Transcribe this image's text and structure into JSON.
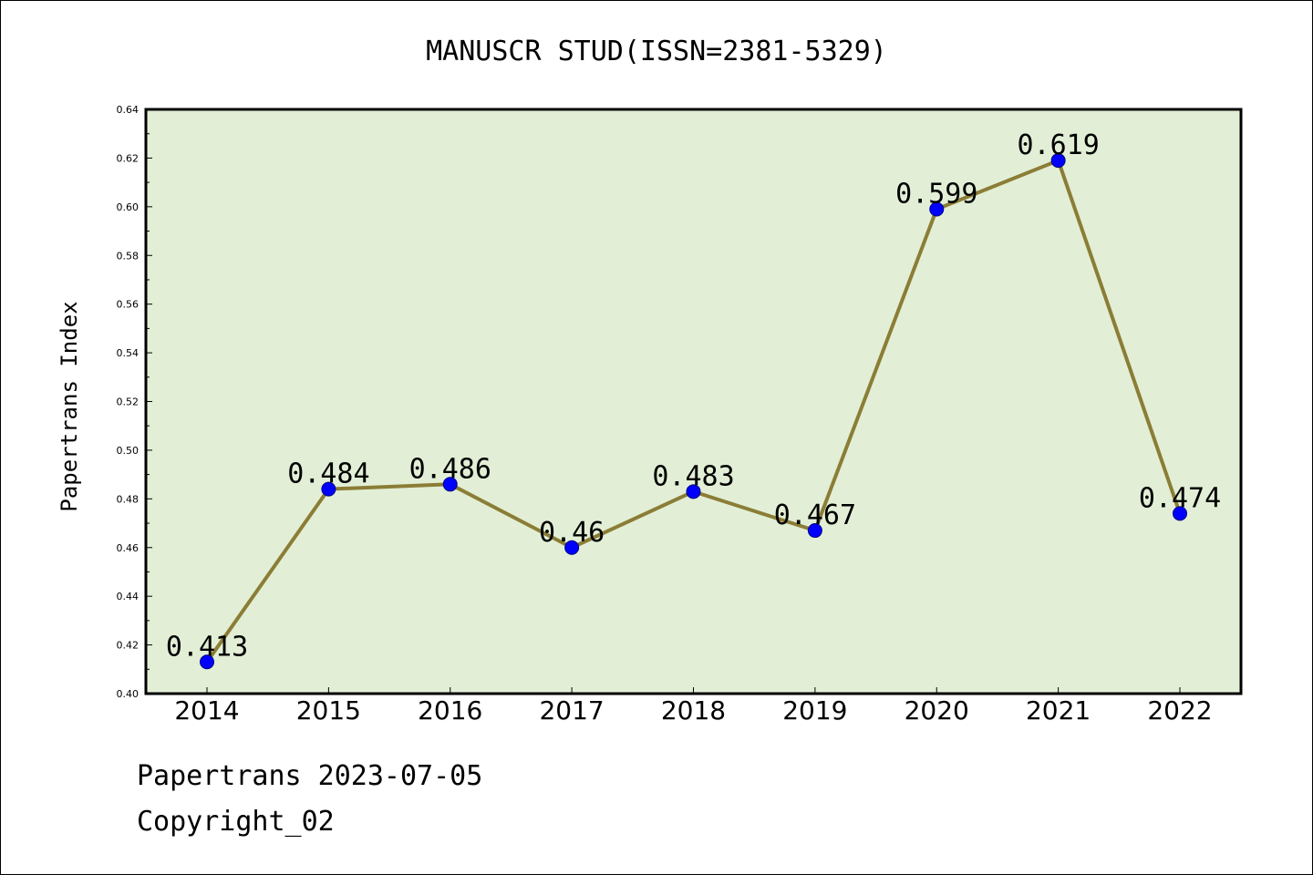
{
  "chart_data": {
    "type": "line",
    "title": "MANUSCR STUD(ISSN=2381-5329)",
    "xlabel": "",
    "ylabel": "Papertrans Index",
    "categories": [
      "2014",
      "2015",
      "2016",
      "2017",
      "2018",
      "2019",
      "2020",
      "2021",
      "2022"
    ],
    "series": [
      {
        "values": [
          0.413,
          0.484,
          0.486,
          0.46,
          0.483,
          0.467,
          0.599,
          0.619,
          0.474
        ],
        "data_labels": [
          "0.413",
          "0.484",
          "0.486",
          "0.46",
          "0.483",
          "0.467",
          "0.599",
          "0.619",
          "0.474"
        ]
      }
    ],
    "ylim": [
      0.4,
      0.64
    ],
    "yticks": [
      "0.40",
      "0.42",
      "0.44",
      "0.46",
      "0.48",
      "0.50",
      "0.52",
      "0.54",
      "0.56",
      "0.58",
      "0.60",
      "0.62",
      "0.64"
    ],
    "grid": false,
    "legend": "none"
  },
  "footer": {
    "line1": "Papertrans 2023-07-05",
    "line2": "Copyright_02"
  },
  "colors": {
    "plot_background": "#e2efd6",
    "line": "#8b7d36",
    "marker": "#0000ff",
    "marker_edge": "#000080"
  }
}
